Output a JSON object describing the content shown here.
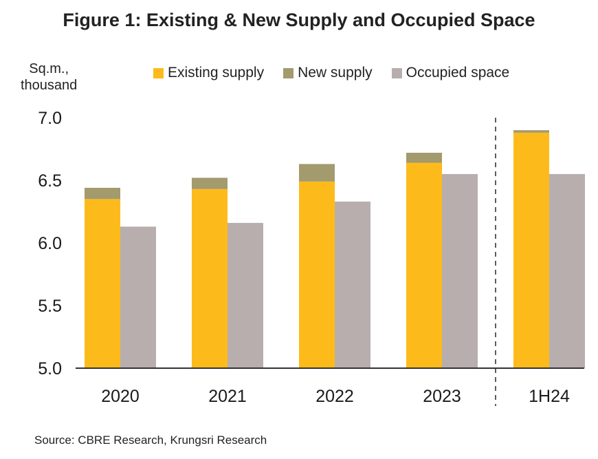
{
  "title": "Figure 1: Existing & New Supply and Occupied Space",
  "source": "Source: CBRE Research, Krungsri Research",
  "colors": {
    "existing": "#FDBB1B",
    "new": "#A39A6D",
    "occupied": "#B7AEAD",
    "axis": "#333333",
    "divider": "#333333"
  },
  "chart_data": {
    "type": "bar",
    "stacked_with_group": true,
    "categories": [
      "2020",
      "2021",
      "2022",
      "2023",
      "1H24"
    ],
    "series": [
      {
        "name": "Existing supply",
        "values": [
          6.35,
          6.43,
          6.49,
          6.64,
          6.88
        ],
        "stack": "supply"
      },
      {
        "name": "New supply",
        "values": [
          0.09,
          0.09,
          0.14,
          0.08,
          0.02
        ],
        "stack": "supply"
      },
      {
        "name": "Occupied space",
        "values": [
          6.13,
          6.16,
          6.33,
          6.55,
          6.55
        ],
        "stack": "occupied"
      }
    ],
    "ylabel_lines": [
      "Sq.m.,",
      "thousand"
    ],
    "ylim": [
      5.0,
      7.0
    ],
    "yticks": [
      "5.0",
      "5.5",
      "6.0",
      "6.5",
      "7.0"
    ],
    "grid": false,
    "legend_position": "top",
    "divider_before": "1H24"
  }
}
